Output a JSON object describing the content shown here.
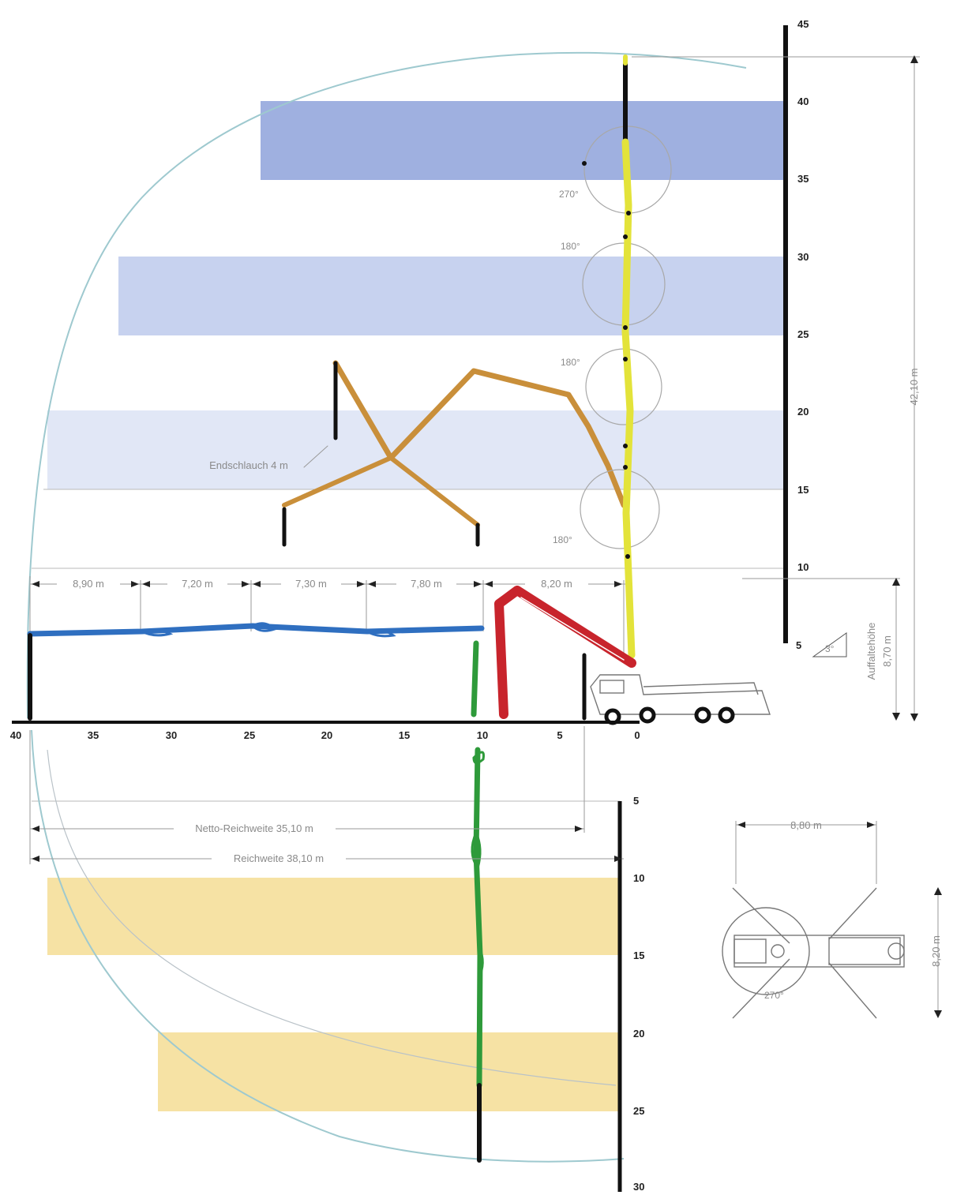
{
  "colors": {
    "band_blue_top": "#9fb0e0",
    "band_blue_mid": "#c7d2ef",
    "band_blue_low": "#e1e7f6",
    "band_yellow": "#f6e2a4",
    "reach_arc": "#9ec9cf",
    "boom_vertical": "#e3e33a",
    "boom_folded": "#c98f3a",
    "boom_horizontal": "#2f6fc0",
    "boom_down": "#2e9a3a",
    "boom_base": "#c8242c"
  },
  "height_axis": {
    "ticks": [
      "45",
      "40",
      "35",
      "30",
      "25",
      "20",
      "15",
      "10",
      "5"
    ]
  },
  "reach_axis": {
    "ticks": [
      "40",
      "35",
      "30",
      "25",
      "20",
      "15",
      "10",
      "5",
      "0"
    ]
  },
  "depth_axis": {
    "ticks": [
      "5",
      "10",
      "15",
      "20",
      "25",
      "30"
    ]
  },
  "dimensions": {
    "segments": [
      "8,90 m",
      "7,20 m",
      "7,30 m",
      "7,80 m",
      "8,20 m"
    ],
    "total_height": "42,10 m",
    "unfold_height_label": "Auffaltehöhe",
    "unfold_height_value": "8,70 m",
    "net_reach": "Netto-Reichweite 35,10 m",
    "reach": "Reichweite 38,10 m",
    "end_hose": "Endschlauch 4 m",
    "outrigger_width": "8,80 m",
    "outrigger_length": "8,20 m"
  },
  "angles": [
    "270°",
    "180°",
    "180°",
    "180°",
    "270°"
  ],
  "slope_label": "3°"
}
